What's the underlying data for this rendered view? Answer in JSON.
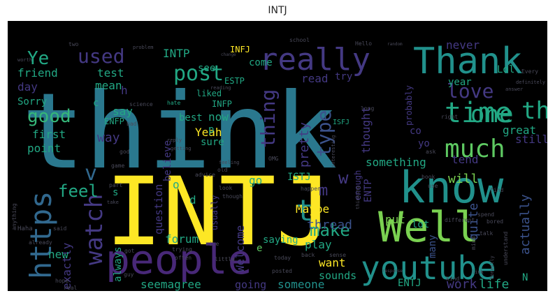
{
  "title": "INTJ",
  "colors": {
    "background": "#000000",
    "yellow": "#fde725",
    "teal": "#2a788e",
    "blue": "#31688e",
    "green": "#35b779",
    "lime": "#7ad151",
    "purple": "#482878",
    "violet": "#443983",
    "cyan": "#22a884",
    "dark": "#3b528b",
    "sea": "#21918c",
    "lightgreen": "#5ec962",
    "grey": "#4a4a5a"
  },
  "words": [
    {
      "text": "think",
      "color": "teal"
    },
    {
      "text": "INTJ",
      "color": "yellow"
    },
    {
      "text": "people",
      "color": "purple"
    },
    {
      "text": "know",
      "color": "sea"
    },
    {
      "text": "Well",
      "color": "lime"
    },
    {
      "text": "youtube",
      "color": "sea"
    },
    {
      "text": "Thank",
      "color": "sea"
    },
    {
      "text": "https",
      "color": "blue"
    },
    {
      "text": "really",
      "color": "violet"
    },
    {
      "text": "watch",
      "color": "violet"
    },
    {
      "text": "time",
      "color": "cyan"
    },
    {
      "text": "much",
      "color": "lightgreen"
    },
    {
      "text": "post",
      "color": "cyan"
    },
    {
      "text": "one",
      "color": "cyan"
    },
    {
      "text": "love",
      "color": "violet"
    },
    {
      "text": "good",
      "color": "green"
    },
    {
      "text": "feel",
      "color": "cyan"
    },
    {
      "text": "make",
      "color": "cyan"
    },
    {
      "text": "used",
      "color": "violet"
    },
    {
      "text": "type",
      "color": "dark"
    },
    {
      "text": "thing",
      "color": "violet"
    },
    {
      "text": "Ye",
      "color": "cyan"
    },
    {
      "text": "th",
      "color": "cyan"
    },
    {
      "text": "t",
      "color": "sea"
    },
    {
      "text": "v",
      "color": "blue"
    },
    {
      "text": "w",
      "color": "violet"
    },
    {
      "text": "m",
      "color": "violet"
    },
    {
      "text": "thread",
      "color": "dark"
    },
    {
      "text": "Maybe",
      "color": "yellow"
    },
    {
      "text": "forum",
      "color": "cyan"
    },
    {
      "text": "someone",
      "color": "sea"
    },
    {
      "text": "want",
      "color": "yellow"
    },
    {
      "text": "going",
      "color": "violet"
    },
    {
      "text": "seemagree",
      "color": "cyan"
    },
    {
      "text": "sounds",
      "color": "cyan"
    },
    {
      "text": "work",
      "color": "violet"
    },
    {
      "text": "life",
      "color": "cyan"
    },
    {
      "text": "Yeah",
      "color": "yellow"
    },
    {
      "text": "pretty",
      "color": "violet"
    },
    {
      "text": "thought",
      "color": "violet"
    },
    {
      "text": "something",
      "color": "cyan"
    },
    {
      "text": "will",
      "color": "lime"
    },
    {
      "text": "quite",
      "color": "dark"
    },
    {
      "text": "actually",
      "color": "dark"
    },
    {
      "text": "Welcome",
      "color": "violet"
    },
    {
      "text": "question",
      "color": "violet"
    },
    {
      "text": "believe",
      "color": "violet"
    },
    {
      "text": "first",
      "color": "cyan"
    },
    {
      "text": "point",
      "color": "cyan"
    },
    {
      "text": "friend",
      "color": "cyan"
    },
    {
      "text": "day",
      "color": "violet"
    },
    {
      "text": "test",
      "color": "cyan"
    },
    {
      "text": "mean",
      "color": "cyan"
    },
    {
      "text": "say",
      "color": "cyan"
    },
    {
      "text": "Sorry",
      "color": "cyan"
    },
    {
      "text": "way",
      "color": "violet"
    },
    {
      "text": "ENFP",
      "color": "cyan"
    },
    {
      "text": "INTP",
      "color": "cyan"
    },
    {
      "text": "see",
      "color": "cyan"
    },
    {
      "text": "INFJ",
      "color": "yellow"
    },
    {
      "text": "come",
      "color": "cyan"
    },
    {
      "text": "read",
      "color": "violet"
    },
    {
      "text": "try",
      "color": "violet"
    },
    {
      "text": "ESTP",
      "color": "cyan"
    },
    {
      "text": "liked",
      "color": "cyan"
    },
    {
      "text": "INFP",
      "color": "cyan"
    },
    {
      "text": "now",
      "color": "cyan"
    },
    {
      "text": "best",
      "color": "cyan"
    },
    {
      "text": "sure",
      "color": "cyan"
    },
    {
      "text": "never",
      "color": "violet"
    },
    {
      "text": "Lol",
      "color": "cyan"
    },
    {
      "text": "year",
      "color": "cyan"
    },
    {
      "text": "still",
      "color": "violet"
    },
    {
      "text": "great",
      "color": "cyan"
    },
    {
      "text": "tend",
      "color": "violet"
    },
    {
      "text": "ENTJ",
      "color": "cyan"
    },
    {
      "text": "ENTP",
      "color": "violet"
    },
    {
      "text": "ISTJ",
      "color": "cyan"
    },
    {
      "text": "lot",
      "color": "cyan"
    },
    {
      "text": "go",
      "color": "cyan"
    },
    {
      "text": "play",
      "color": "cyan"
    },
    {
      "text": "always",
      "color": "cyan"
    },
    {
      "text": "exactly",
      "color": "violet"
    },
    {
      "text": "new",
      "color": "cyan"
    },
    {
      "text": "saying",
      "color": "cyan"
    },
    {
      "text": "probably",
      "color": "violet"
    },
    {
      "text": "enough",
      "color": "violet"
    },
    {
      "text": "put",
      "color": "lime"
    },
    {
      "text": "many",
      "color": "dark"
    },
    {
      "text": "co",
      "color": "violet"
    },
    {
      "text": "yo",
      "color": "violet"
    },
    {
      "text": "p",
      "color": "cyan"
    },
    {
      "text": "d",
      "color": "cyan"
    },
    {
      "text": "o",
      "color": "cyan"
    },
    {
      "text": "s",
      "color": "cyan"
    },
    {
      "text": "c",
      "color": "cyan"
    },
    {
      "text": "h",
      "color": "violet"
    },
    {
      "text": "e",
      "color": "lightgreen"
    },
    {
      "text": "N",
      "color": "cyan"
    },
    {
      "text": "usually",
      "color": "violet"
    },
    {
      "text": "ISFJ",
      "color": "cyan"
    },
    {
      "text": "hate",
      "color": "cyan"
    },
    {
      "text": "science",
      "color": "grey"
    },
    {
      "text": "reading",
      "color": "grey"
    },
    {
      "text": "school",
      "color": "grey"
    },
    {
      "text": "Hello",
      "color": "grey"
    },
    {
      "text": "two",
      "color": "grey"
    },
    {
      "text": "problem",
      "color": "grey"
    },
    {
      "text": "bad",
      "color": "grey"
    },
    {
      "text": "god",
      "color": "grey"
    },
    {
      "text": "game",
      "color": "grey"
    },
    {
      "text": "part",
      "color": "grey"
    },
    {
      "text": "take",
      "color": "grey"
    },
    {
      "text": "Haha",
      "color": "grey"
    },
    {
      "text": "said",
      "color": "grey"
    },
    {
      "text": "anything",
      "color": "grey"
    },
    {
      "text": "already",
      "color": "grey"
    },
    {
      "text": "hope",
      "color": "grey"
    },
    {
      "text": "real",
      "color": "grey"
    },
    {
      "text": "guy",
      "color": "grey"
    },
    {
      "text": "got",
      "color": "grey"
    },
    {
      "text": "often",
      "color": "grey"
    },
    {
      "text": "trying",
      "color": "grey"
    },
    {
      "text": "advice",
      "color": "grey"
    },
    {
      "text": "old",
      "color": "grey"
    },
    {
      "text": "look",
      "color": "grey"
    },
    {
      "text": "though",
      "color": "grey"
    },
    {
      "text": "nice",
      "color": "grey"
    },
    {
      "text": "little",
      "color": "grey"
    },
    {
      "text": "today",
      "color": "grey"
    },
    {
      "text": "posted",
      "color": "grey"
    },
    {
      "text": "back",
      "color": "grey"
    },
    {
      "text": "sense",
      "color": "grey"
    },
    {
      "text": "thinking",
      "color": "grey"
    },
    {
      "text": "happen",
      "color": "grey"
    },
    {
      "text": "interesting",
      "color": "grey"
    },
    {
      "text": "book",
      "color": "grey"
    },
    {
      "text": "use",
      "color": "grey"
    },
    {
      "text": "different",
      "color": "grey"
    },
    {
      "text": "spend",
      "color": "grey"
    },
    {
      "text": "bored",
      "color": "grey"
    },
    {
      "text": "understand",
      "color": "grey"
    },
    {
      "text": "talk",
      "color": "grey"
    },
    {
      "text": "mind",
      "color": "grey"
    },
    {
      "text": "honestly",
      "color": "grey"
    },
    {
      "text": "kind",
      "color": "grey"
    },
    {
      "text": "definitely",
      "color": "grey"
    },
    {
      "text": "answer",
      "color": "grey"
    },
    {
      "text": "Every",
      "color": "grey"
    },
    {
      "text": "right",
      "color": "grey"
    },
    {
      "text": "getting",
      "color": "grey"
    },
    {
      "text": "reply",
      "color": "grey"
    },
    {
      "text": "feeling",
      "color": "grey"
    },
    {
      "text": "OMG",
      "color": "grey"
    },
    {
      "text": "find",
      "color": "grey"
    },
    {
      "text": "ask",
      "color": "grey"
    },
    {
      "text": "long",
      "color": "grey"
    },
    {
      "text": "response",
      "color": "grey"
    },
    {
      "text": "link",
      "color": "grey"
    },
    {
      "text": "worth",
      "color": "grey"
    },
    {
      "text": "change",
      "color": "grey"
    },
    {
      "text": "random",
      "color": "grey"
    }
  ]
}
